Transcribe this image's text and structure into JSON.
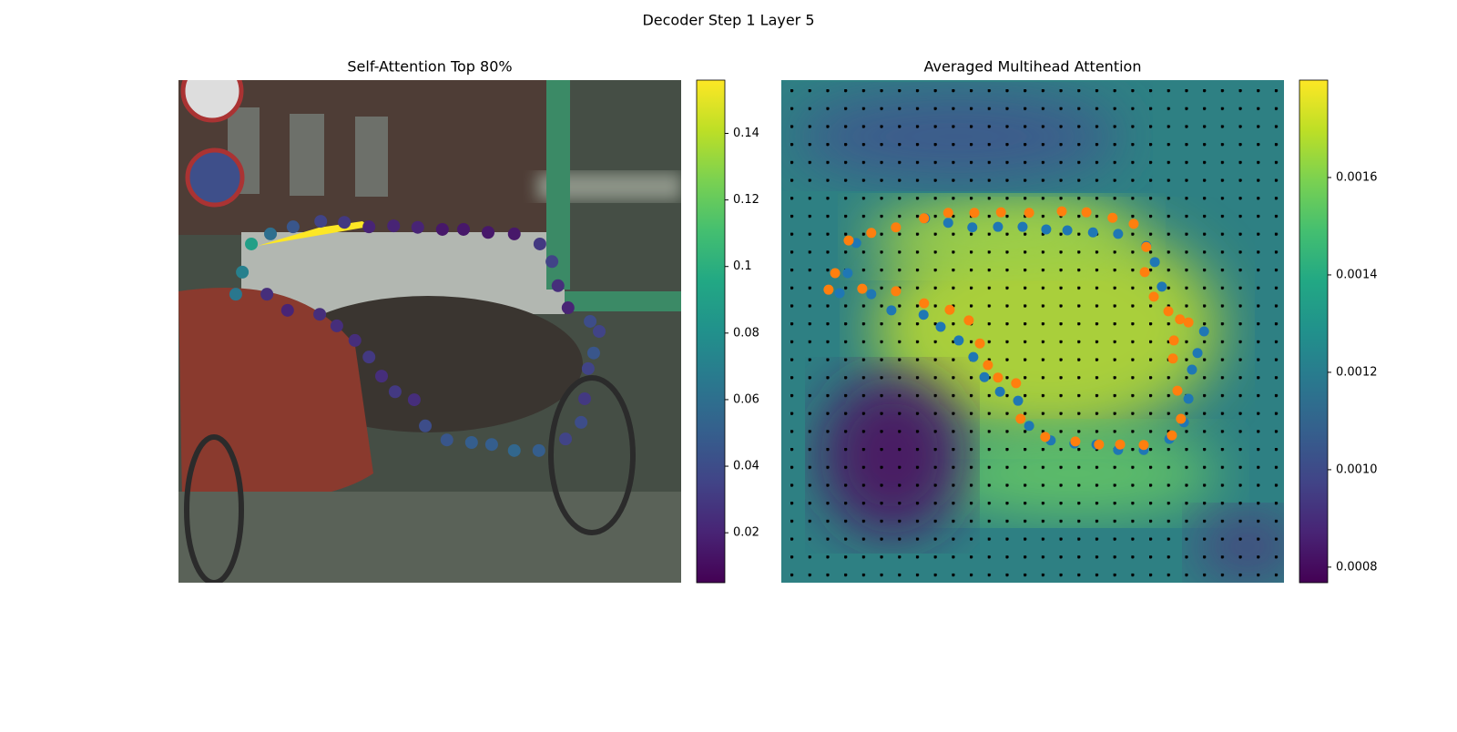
{
  "title": "Decoder Step 1 Layer 5",
  "chart_data": [
    {
      "type": "scatter",
      "title": "Self-Attention Top 80%",
      "cmap": "viridis",
      "x": [
        0.145,
        0.127,
        0.114,
        0.183,
        0.228,
        0.283,
        0.33,
        0.379,
        0.428,
        0.476,
        0.525,
        0.567,
        0.616,
        0.668,
        0.719,
        0.743,
        0.755,
        0.775,
        0.819,
        0.837,
        0.826,
        0.815,
        0.808,
        0.801,
        0.77,
        0.717,
        0.668,
        0.623,
        0.583,
        0.534,
        0.491,
        0.469,
        0.431,
        0.404,
        0.379,
        0.351,
        0.315,
        0.281,
        0.217,
        0.176
      ],
      "y": [
        0.326,
        0.382,
        0.426,
        0.306,
        0.292,
        0.281,
        0.283,
        0.292,
        0.29,
        0.293,
        0.297,
        0.297,
        0.303,
        0.306,
        0.326,
        0.361,
        0.409,
        0.453,
        0.48,
        0.5,
        0.543,
        0.574,
        0.634,
        0.681,
        0.714,
        0.737,
        0.737,
        0.725,
        0.721,
        0.716,
        0.688,
        0.636,
        0.62,
        0.589,
        0.551,
        0.518,
        0.489,
        0.466,
        0.458,
        0.426
      ],
      "values": [
        0.09,
        0.07,
        0.065,
        0.06,
        0.045,
        0.035,
        0.03,
        0.02,
        0.02,
        0.02,
        0.015,
        0.015,
        0.015,
        0.015,
        0.03,
        0.035,
        0.025,
        0.02,
        0.04,
        0.035,
        0.045,
        0.035,
        0.03,
        0.04,
        0.035,
        0.05,
        0.055,
        0.05,
        0.05,
        0.045,
        0.04,
        0.025,
        0.03,
        0.025,
        0.03,
        0.025,
        0.025,
        0.025,
        0.02,
        0.025
      ],
      "clim": [
        0.005,
        0.156
      ],
      "cticks": [
        0.02,
        0.04,
        0.06,
        0.08,
        0.1,
        0.12,
        0.14
      ]
    },
    {
      "type": "scatter",
      "title": "Averaged Multihead Attention",
      "cmap": "viridis",
      "series": [
        {
          "color": "#1f77b4",
          "x": [
            0.149,
            0.132,
            0.116,
            0.179,
            0.219,
            0.283,
            0.317,
            0.353,
            0.382,
            0.404,
            0.435,
            0.471,
            0.493,
            0.536,
            0.583,
            0.627,
            0.67,
            0.721,
            0.772,
            0.801,
            0.81,
            0.817,
            0.828,
            0.841,
            0.757,
            0.743,
            0.726,
            0.67,
            0.62,
            0.569,
            0.527,
            0.48,
            0.431,
            0.38,
            0.332,
            0.286
          ],
          "y": [
            0.324,
            0.384,
            0.424,
            0.426,
            0.458,
            0.467,
            0.491,
            0.518,
            0.551,
            0.591,
            0.62,
            0.638,
            0.688,
            0.717,
            0.723,
            0.725,
            0.736,
            0.736,
            0.714,
            0.681,
            0.634,
            0.576,
            0.543,
            0.5,
            0.411,
            0.362,
            0.33,
            0.306,
            0.303,
            0.299,
            0.297,
            0.292,
            0.292,
            0.293,
            0.284,
            0.275
          ]
        },
        {
          "color": "#ff7f0e",
          "x": [
            0.094,
            0.107,
            0.134,
            0.179,
            0.228,
            0.284,
            0.332,
            0.384,
            0.437,
            0.493,
            0.558,
            0.607,
            0.659,
            0.701,
            0.726,
            0.723,
            0.741,
            0.77,
            0.793,
            0.81,
            0.781,
            0.779,
            0.788,
            0.795,
            0.777,
            0.721,
            0.674,
            0.632,
            0.585,
            0.525,
            0.476,
            0.467,
            0.431,
            0.411,
            0.395,
            0.373,
            0.335,
            0.284,
            0.228,
            0.161
          ],
          "y": [
            0.417,
            0.384,
            0.319,
            0.304,
            0.293,
            0.275,
            0.264,
            0.264,
            0.263,
            0.264,
            0.261,
            0.263,
            0.274,
            0.286,
            0.332,
            0.382,
            0.431,
            0.46,
            0.476,
            0.482,
            0.518,
            0.554,
            0.618,
            0.674,
            0.707,
            0.726,
            0.725,
            0.725,
            0.719,
            0.71,
            0.674,
            0.603,
            0.592,
            0.567,
            0.524,
            0.478,
            0.457,
            0.444,
            0.42,
            0.415
          ]
        }
      ],
      "clim": [
        0.000768,
        0.0018
      ],
      "cticks": [
        0.0008,
        {
          "value": 0.001,
          "label": "0.0010"
        },
        0.0012,
        0.0014,
        0.0016
      ]
    }
  ]
}
